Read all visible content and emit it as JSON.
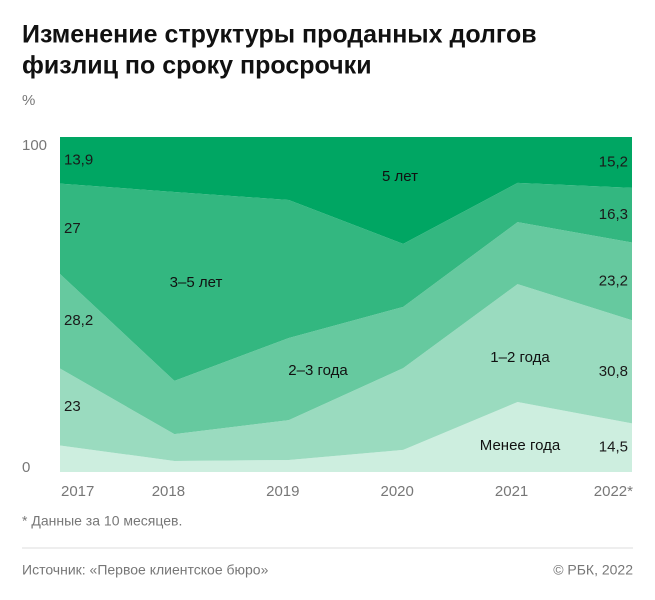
{
  "chart_data": {
    "type": "stacked_area",
    "title": [
      "Изменение структуры проданных долгов",
      "физлиц по сроку просрочки"
    ],
    "y_unit": "%",
    "categories": [
      "2017",
      "2018",
      "2019",
      "2020",
      "2021",
      "2022*"
    ],
    "ylim": [
      0,
      100
    ],
    "yticks": [
      0,
      100
    ],
    "series": [
      {
        "name": "Менее года",
        "color": "#cdeedf",
        "values": [
          7.9,
          3.3,
          3.6,
          6.6,
          20.9,
          14.5
        ],
        "value_labels": [
          null,
          null,
          null,
          null,
          null,
          "14,5"
        ]
      },
      {
        "name": "1–2 года",
        "color": "#9adbbf",
        "values": [
          23,
          8.0,
          11.9,
          24.4,
          35.2,
          30.8
        ],
        "value_labels": [
          "23",
          null,
          null,
          null,
          null,
          "30,8"
        ]
      },
      {
        "name": "2–3 года",
        "color": "#66c99f",
        "values": [
          28.2,
          15.9,
          24.5,
          18.3,
          18.5,
          23.2
        ],
        "value_labels": [
          "28,2",
          null,
          null,
          null,
          null,
          "23,2"
        ]
      },
      {
        "name": "3–5 лет",
        "color": "#33b780",
        "values": [
          27,
          56.4,
          41.2,
          18.8,
          11.7,
          16.3
        ],
        "value_labels": [
          "27",
          null,
          null,
          null,
          null,
          "16,3"
        ]
      },
      {
        "name": "5 лет",
        "color": "#00a663",
        "values": [
          13.9,
          16.4,
          18.8,
          31.9,
          13.7,
          15.2
        ],
        "value_labels": [
          "13,9",
          null,
          null,
          null,
          null,
          "15,2"
        ]
      }
    ],
    "footnote": "* Данные за 10 месяцев.",
    "source": "Источник: «Первое клиентское бюро»",
    "copyright": "© РБК, 2022"
  }
}
